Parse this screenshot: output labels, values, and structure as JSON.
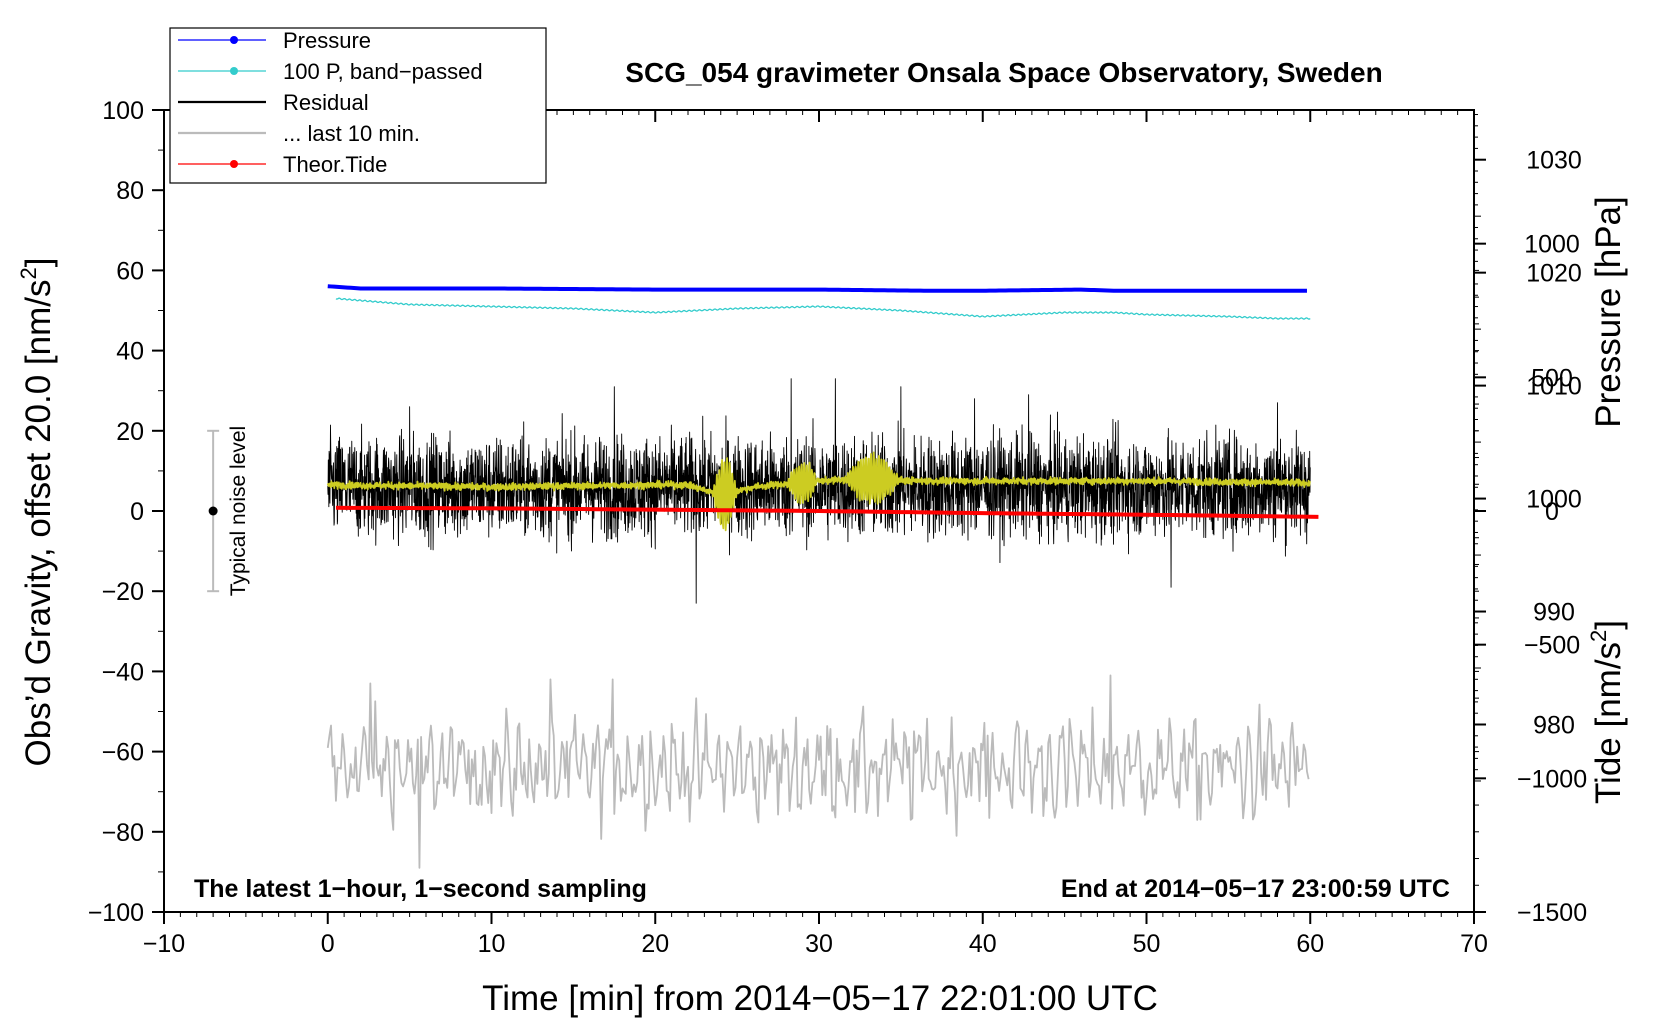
{
  "chart_data": {
    "type": "line",
    "title": "SCG_054 gravimeter Onsala Space Observatory, Sweden",
    "xlabel": "Time [min] from 2014−05−17 22:01:00 UTC",
    "ylabel_left_main": "Obs’d Gravity, offset 20.0 [nm/s",
    "ylabel_left_sup": "2",
    "ylabel_left_close": "]",
    "ylabel_right_top": "Pressure [hPa]",
    "ylabel_right_bottom_main": "Tide [nm/s",
    "ylabel_right_bottom_sup": "2",
    "ylabel_right_bottom_close": "]",
    "xlim": [
      -10,
      70
    ],
    "ylim": [
      -100,
      100
    ],
    "x_ticks": [
      {
        "v": -10,
        "t": "−10"
      },
      {
        "v": 0,
        "t": "0"
      },
      {
        "v": 10,
        "t": "10"
      },
      {
        "v": 20,
        "t": "20"
      },
      {
        "v": 30,
        "t": "30"
      },
      {
        "v": 40,
        "t": "40"
      },
      {
        "v": 50,
        "t": "50"
      },
      {
        "v": 60,
        "t": "60"
      },
      {
        "v": 70,
        "t": "70"
      }
    ],
    "y_ticks": [
      {
        "v": 100,
        "t": "100"
      },
      {
        "v": 80,
        "t": "80"
      },
      {
        "v": 60,
        "t": "60"
      },
      {
        "v": 40,
        "t": "40"
      },
      {
        "v": 20,
        "t": "20"
      },
      {
        "v": 0,
        "t": "0"
      },
      {
        "v": -20,
        "t": "−20"
      },
      {
        "v": -40,
        "t": "−40"
      },
      {
        "v": -60,
        "t": "−60"
      },
      {
        "v": -80,
        "t": "−80"
      },
      {
        "v": -100,
        "t": "−100"
      }
    ],
    "pressure_axis": {
      "ylim": [
        963.4,
        1034.4
      ],
      "ticks": [
        {
          "v": 1030,
          "t": "1030"
        },
        {
          "v": 1020,
          "t": "1020"
        },
        {
          "v": 1010,
          "t": "1010"
        },
        {
          "v": 1000,
          "t": "1000"
        },
        {
          "v": 990,
          "t": "990"
        },
        {
          "v": 980,
          "t": "980"
        }
      ]
    },
    "tide_axis": {
      "ylim": [
        -1500,
        1500
      ],
      "ticks": [
        {
          "v": 1000,
          "t": "1000"
        },
        {
          "v": 500,
          "t": "500"
        },
        {
          "v": 0,
          "t": "0"
        },
        {
          "v": -500,
          "t": "−500"
        },
        {
          "v": -1000,
          "t": "−1000"
        },
        {
          "v": -1500,
          "t": "−1500"
        }
      ]
    },
    "legend": {
      "placement": "top-left",
      "entries": [
        {
          "label": "Pressure",
          "color": "#0000ff",
          "marker": true
        },
        {
          "label": "100 P, band−passed",
          "color": "#33cccc",
          "marker": true
        },
        {
          "label": "Residual",
          "color": "#000000",
          "marker": false
        },
        {
          "label": "... last 10 min.",
          "color": "#bbbbbb",
          "marker": false
        },
        {
          "label": "Theor.Tide",
          "color": "#ff0000",
          "marker": true
        }
      ]
    },
    "series": [
      {
        "name": "Pressure",
        "axis": "pressure",
        "color": "#0000ff",
        "x": [
          0,
          2,
          10,
          20,
          30,
          36.5,
          40,
          46,
          48,
          50,
          60
        ],
        "y": [
          1018.8,
          1018.6,
          1018.6,
          1018.5,
          1018.5,
          1018.4,
          1018.4,
          1018.5,
          1018.4,
          1018.4,
          1018.4
        ]
      },
      {
        "name": "100 P, band−passed",
        "axis": "gravity",
        "color": "#33cccc",
        "x": [
          0.5,
          5,
          10,
          15,
          20,
          25,
          30,
          35,
          40,
          45,
          48,
          50,
          55,
          58,
          60
        ],
        "y": [
          53,
          51.5,
          51,
          50.5,
          49.5,
          50.5,
          51,
          50,
          48.5,
          49.5,
          49.5,
          49,
          48.5,
          48,
          48
        ]
      },
      {
        "name": "Residual",
        "axis": "gravity",
        "color": "#000000",
        "x_range": [
          0,
          60
        ],
        "center": 6,
        "amplitude": 9,
        "extremes": [
          {
            "x": 5,
            "y": 26
          },
          {
            "x": 17.5,
            "y": 31
          },
          {
            "x": 22.5,
            "y": -23
          },
          {
            "x": 28.3,
            "y": 33
          },
          {
            "x": 31,
            "y": 33
          },
          {
            "x": 35,
            "y": 31
          },
          {
            "x": 39.5,
            "y": 28
          },
          {
            "x": 42.8,
            "y": 29
          },
          {
            "x": 51.5,
            "y": -19
          },
          {
            "x": 58,
            "y": 27
          }
        ]
      },
      {
        "name": "yellow smoothed",
        "axis": "gravity",
        "color": "#cccc22",
        "x": [
          0,
          10,
          20,
          22,
          24,
          26,
          30,
          33,
          36,
          40,
          50,
          60
        ],
        "y": [
          6.5,
          6,
          6.5,
          6.5,
          4,
          6,
          7.5,
          8,
          7.5,
          7.5,
          7.5,
          7
        ],
        "burst": [
          {
            "from": 23.5,
            "to": 25,
            "amp": 9
          },
          {
            "from": 28,
            "to": 30,
            "amp": 5
          },
          {
            "from": 31.5,
            "to": 35,
            "amp": 6
          }
        ]
      },
      {
        "name": "... last 10 min.",
        "axis": "gravity",
        "color": "#bbbbbb",
        "x_range": [
          0,
          60
        ],
        "center": -64,
        "amplitude": 7,
        "extremes": [
          {
            "x": 2.6,
            "y": -43
          },
          {
            "x": 5.6,
            "y": -89
          },
          {
            "x": 13.6,
            "y": -42
          },
          {
            "x": 17.4,
            "y": -42
          },
          {
            "x": 47.8,
            "y": -41
          }
        ]
      },
      {
        "name": "Theor.Tide",
        "axis": "tide",
        "color": "#ff0000",
        "x": [
          0.5,
          10,
          20,
          30,
          40,
          50,
          60.5
        ],
        "y": [
          12,
          10,
          5,
          0,
          -8,
          -14,
          -22
        ]
      }
    ],
    "noise_bar": {
      "x": -7,
      "y": 0,
      "half_range": 20,
      "label": "Typical noise level"
    },
    "annotations": {
      "bottom_left": "The latest 1−hour, 1−second sampling",
      "bottom_right": "End at 2014−05−17 23:00:59 UTC"
    },
    "grid": false
  }
}
